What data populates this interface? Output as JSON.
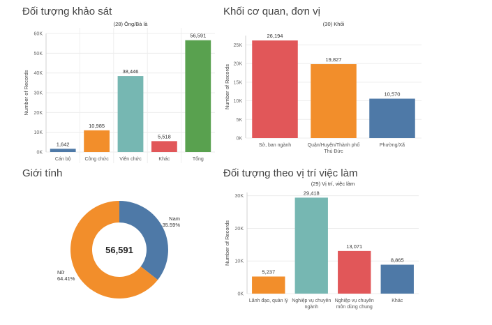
{
  "panels": {
    "survey": {
      "title": "Đối tượng khảo sát",
      "chart_data": {
        "type": "bar",
        "subtitle": "(28) Ông/Bà là",
        "ylabel": "Number of Records",
        "categories": [
          "Cán bộ",
          "Công chức",
          "Viên chức",
          "Khác",
          "Tổng"
        ],
        "values": [
          1642,
          10985,
          38446,
          5518,
          56591
        ],
        "value_labels": [
          "1,642",
          "10,985",
          "38,446",
          "5,518",
          "56,591"
        ],
        "colors": [
          "#4e79a7",
          "#f28e2b",
          "#76b7b2",
          "#e15759",
          "#59a14f"
        ],
        "ylim": [
          0,
          60000
        ],
        "yticks": [
          0,
          10000,
          20000,
          30000,
          40000,
          50000,
          60000
        ],
        "ytick_labels": [
          "0K",
          "10K",
          "20K",
          "30K",
          "40K",
          "50K",
          "60K"
        ]
      }
    },
    "agency": {
      "title": "Khối cơ quan, đơn vị",
      "chart_data": {
        "type": "bar",
        "subtitle": "(30) Khối",
        "ylabel": "Number of Records",
        "categories": [
          [
            "Sở, ban ngành"
          ],
          [
            "Quận/Huyện/Thành phố",
            "Thủ Đức"
          ],
          [
            "Phường/Xã"
          ]
        ],
        "values": [
          26194,
          19827,
          10570
        ],
        "value_labels": [
          "26,194",
          "19,827",
          "10,570"
        ],
        "colors": [
          "#e15759",
          "#f28e2b",
          "#4e79a7"
        ],
        "ylim": [
          0,
          27500
        ],
        "yticks": [
          0,
          5000,
          10000,
          15000,
          20000,
          25000
        ],
        "ytick_labels": [
          "0K",
          "5K",
          "10K",
          "15K",
          "20K",
          "25K"
        ]
      }
    },
    "gender": {
      "title": "Giới tính",
      "chart_data": {
        "type": "pie",
        "center_label": "56,591",
        "slices": [
          {
            "name": "Nam",
            "percent_label": "35.59%",
            "value": 35.59,
            "color": "#4e79a7"
          },
          {
            "name": "Nữ",
            "percent_label": "64.41%",
            "value": 64.41,
            "color": "#f28e2b"
          }
        ]
      }
    },
    "position": {
      "title": "Đối tượng theo vị trí việc làm",
      "chart_data": {
        "type": "bar",
        "subtitle": "(29) Vị trí, việc làm",
        "ylabel": "Number of Records",
        "categories": [
          [
            "Lãnh đạo, quản lý"
          ],
          [
            "Nghiệp vụ chuyên",
            "ngành"
          ],
          [
            "Nghiệp vụ chuyên",
            "môn dùng chung"
          ],
          [
            "Khác"
          ]
        ],
        "values": [
          5237,
          29418,
          13071,
          8865
        ],
        "value_labels": [
          "5,237",
          "29,418",
          "13,071",
          "8,865"
        ],
        "colors": [
          "#f28e2b",
          "#76b7b2",
          "#e15759",
          "#4e79a7"
        ],
        "ylim": [
          0,
          31000
        ],
        "yticks": [
          0,
          10000,
          20000,
          30000
        ],
        "ytick_labels": [
          "0K",
          "10K",
          "20K",
          "30K"
        ]
      }
    }
  }
}
